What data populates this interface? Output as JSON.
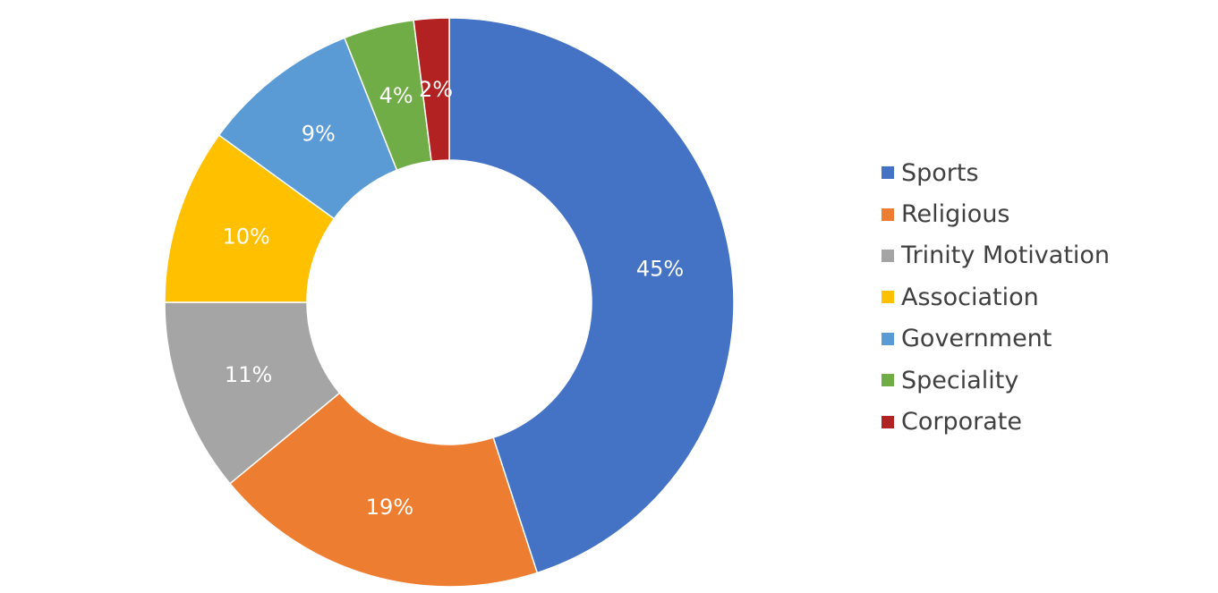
{
  "chart_data": {
    "type": "pie",
    "variant": "donut",
    "categories": [
      "Sports",
      "Religious",
      "Trinity Motivation",
      "Association",
      "Government",
      "Speciality",
      "Corporate"
    ],
    "values": [
      45,
      19,
      11,
      10,
      9,
      4,
      2
    ],
    "value_labels": [
      "45%",
      "19%",
      "11%",
      "10%",
      "9%",
      "4%",
      "2%"
    ],
    "colors": [
      "#4472C4",
      "#ED7D31",
      "#A5A5A5",
      "#FFC000",
      "#5B9BD5",
      "#70AD47",
      "#B22222"
    ],
    "legend_position": "right"
  }
}
